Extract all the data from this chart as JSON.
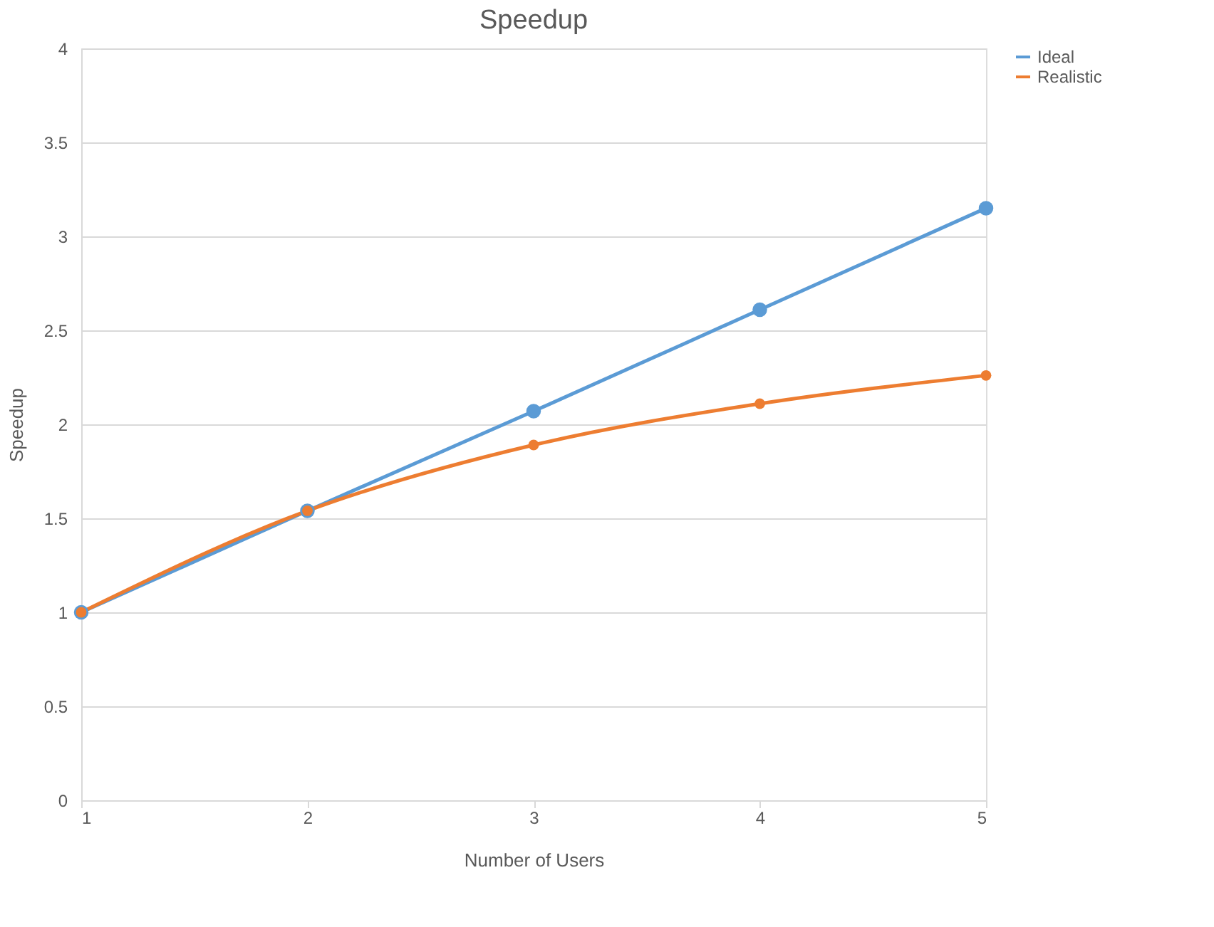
{
  "chart_data": {
    "type": "line",
    "title": "Speedup",
    "xlabel": "Number of Users",
    "ylabel": "Speedup",
    "x": [
      1,
      2,
      3,
      4,
      5
    ],
    "series": [
      {
        "name": "Ideal",
        "color": "#5b9bd5",
        "values": [
          1.0,
          1.54,
          2.07,
          2.61,
          3.15
        ]
      },
      {
        "name": "Realistic",
        "color": "#ed7d31",
        "values": [
          1.0,
          1.54,
          1.89,
          2.11,
          2.26
        ]
      }
    ],
    "xlim": [
      1,
      5
    ],
    "xticks": [
      1,
      2,
      3,
      4,
      5
    ],
    "ylim": [
      0,
      4
    ],
    "yticks": [
      0,
      0.5,
      1,
      1.5,
      2,
      2.5,
      3,
      3.5,
      4
    ],
    "grid": "y",
    "legend": "right",
    "marker": "circle",
    "line_style": "solid"
  }
}
